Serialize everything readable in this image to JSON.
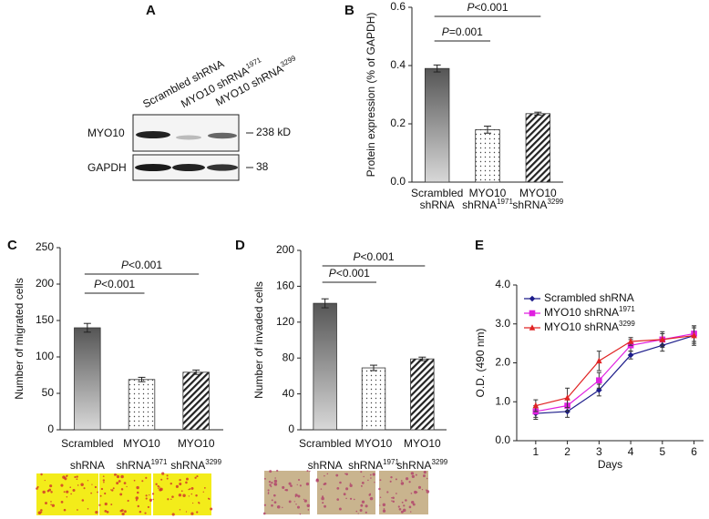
{
  "blot": {
    "label": "A",
    "lanes": [
      "Scrambled shRNA",
      "MYO10 shRNA1971",
      "MYO10 shRNA3299"
    ],
    "bands": [
      {
        "name": "MYO10",
        "size": "238 kD"
      },
      {
        "name": "GAPDH",
        "size": 38
      }
    ]
  },
  "chart_data": [
    {
      "type": "bar",
      "panel_label": "B",
      "ylabel": "Protein expression (% of GAPDH)",
      "categories": [
        [
          "Scrambled",
          "shRNA"
        ],
        [
          "MYO10",
          "shRNA1971"
        ],
        [
          "MYO10",
          "shRNA3299"
        ]
      ],
      "values": [
        0.39,
        0.18,
        0.235
      ],
      "errors": [
        0.012,
        0.012,
        0.005
      ],
      "fills": [
        "gradient",
        "dots",
        "hatch"
      ],
      "ylim": [
        0,
        0.6
      ],
      "yticks": [
        {
          "value": 0,
          "label": "0.0"
        },
        0.2,
        0.4,
        0.6
      ],
      "annotations": [
        "P=0.001",
        "P<0.001"
      ]
    },
    {
      "type": "bar",
      "panel_label": "C",
      "ylabel": "Number of migrated cells",
      "categories": [
        [
          "Scrambled",
          "shRNA"
        ],
        [
          "MYO10",
          "shRNA1971"
        ],
        [
          "MYO10",
          "shRNA3299"
        ]
      ],
      "values": [
        140,
        69,
        79
      ],
      "errors": [
        6,
        3,
        3
      ],
      "fills": [
        "gradient",
        "dots",
        "hatch"
      ],
      "ylim": [
        0,
        250
      ],
      "yticks": [
        0,
        50,
        100,
        150,
        200,
        250
      ],
      "annotations": [
        "P<0.001",
        "P<0.001"
      ]
    },
    {
      "type": "bar",
      "panel_label": "D",
      "ylabel": "Number of invaded cells",
      "categories": [
        [
          "Scrambled",
          "shRNA"
        ],
        [
          "MYO10",
          "shRNA1971"
        ],
        [
          "MYO10",
          "shRNA3299"
        ]
      ],
      "values": [
        141,
        69,
        79
      ],
      "errors": [
        5,
        3,
        2
      ],
      "fills": [
        "gradient",
        "dots",
        "hatch"
      ],
      "ylim": [
        0,
        200
      ],
      "yticks": [
        0,
        40,
        80,
        120,
        160,
        200
      ],
      "annotations": [
        "P<0.001",
        "P<0.001"
      ]
    },
    {
      "type": "line",
      "panel_label": "E",
      "xlabel": "Days",
      "ylabel": "O.D. (490 nm)",
      "x": [
        1,
        2,
        3,
        4,
        5,
        6
      ],
      "xlim": [
        0.4,
        6.3
      ],
      "xticks": [
        1,
        2,
        3,
        4,
        5,
        6
      ],
      "ylim": [
        0,
        4
      ],
      "yticks": [
        {
          "value": 0,
          "label": "0.0"
        },
        {
          "value": 1,
          "label": "1.0"
        },
        {
          "value": 2,
          "label": "2.0"
        },
        {
          "value": 3,
          "label": "3.0"
        },
        {
          "value": 4,
          "label": "4.0"
        }
      ],
      "series": [
        {
          "name": "Scrambled shRNA",
          "color": "#1c1c8a",
          "marker": "diamond",
          "values": [
            0.7,
            0.75,
            1.3,
            2.2,
            2.45,
            2.7
          ],
          "errors": [
            0.15,
            0.15,
            0.15,
            0.1,
            0.15,
            0.25
          ]
        },
        {
          "name": "MYO10 shRNA1971",
          "color": "#e020e0",
          "marker": "square",
          "values": [
            0.75,
            0.9,
            1.55,
            2.45,
            2.6,
            2.75
          ],
          "errors": [
            0.15,
            0.15,
            0.2,
            0.15,
            0.15,
            0.2
          ]
        },
        {
          "name": "MYO10 shRNA3299",
          "color": "#e02424",
          "marker": "triangle",
          "values": [
            0.9,
            1.1,
            2.05,
            2.55,
            2.6,
            2.7
          ],
          "errors": [
            0.15,
            0.25,
            0.25,
            0.1,
            0.2,
            0.2
          ]
        }
      ]
    }
  ]
}
